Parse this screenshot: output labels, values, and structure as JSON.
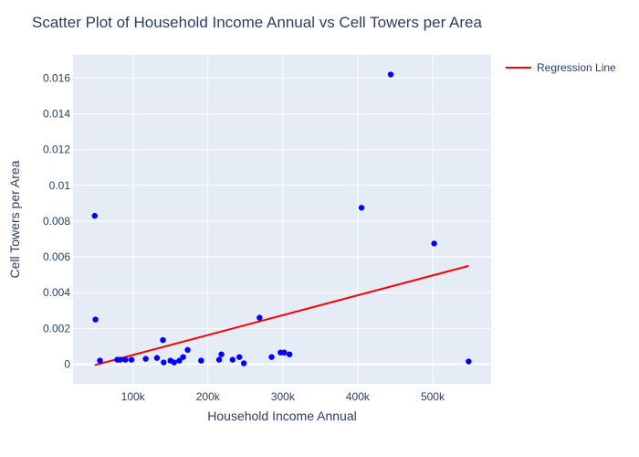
{
  "chart_data": {
    "type": "scatter",
    "title": "Scatter Plot of Household Income Annual vs Cell Towers per Area",
    "xlabel": "Household Income Annual",
    "ylabel": "Cell Towers per Area",
    "xlim": [
      20000,
      578000
    ],
    "ylim": [
      -0.0011,
      0.0173
    ],
    "x_ticks": [
      {
        "value": 100000,
        "label": "100k"
      },
      {
        "value": 200000,
        "label": "200k"
      },
      {
        "value": 300000,
        "label": "300k"
      },
      {
        "value": 400000,
        "label": "400k"
      },
      {
        "value": 500000,
        "label": "500k"
      }
    ],
    "y_ticks": [
      {
        "value": 0,
        "label": "0"
      },
      {
        "value": 0.002,
        "label": "0.002"
      },
      {
        "value": 0.004,
        "label": "0.004"
      },
      {
        "value": 0.006,
        "label": "0.006"
      },
      {
        "value": 0.008,
        "label": "0.008"
      },
      {
        "value": 0.01,
        "label": "0.01"
      },
      {
        "value": 0.012,
        "label": "0.012"
      },
      {
        "value": 0.014,
        "label": "0.014"
      },
      {
        "value": 0.016,
        "label": "0.016"
      }
    ],
    "grid": true,
    "legend_position": "top-right",
    "series": [
      {
        "kind": "scatter",
        "color": "#0000ff",
        "points": [
          {
            "x": 49000,
            "y": 0.0083
          },
          {
            "x": 50000,
            "y": 0.0025
          },
          {
            "x": 56000,
            "y": 0.0002
          },
          {
            "x": 79000,
            "y": 0.00025
          },
          {
            "x": 83000,
            "y": 0.00025
          },
          {
            "x": 90000,
            "y": 0.00025
          },
          {
            "x": 98000,
            "y": 0.00025
          },
          {
            "x": 117000,
            "y": 0.0003
          },
          {
            "x": 132000,
            "y": 0.00035
          },
          {
            "x": 140000,
            "y": 0.00135
          },
          {
            "x": 141000,
            "y": 0.0001
          },
          {
            "x": 150000,
            "y": 0.0002
          },
          {
            "x": 155000,
            "y": 0.0001
          },
          {
            "x": 162000,
            "y": 0.0002
          },
          {
            "x": 167000,
            "y": 0.0004
          },
          {
            "x": 173000,
            "y": 0.0008
          },
          {
            "x": 191000,
            "y": 0.0002
          },
          {
            "x": 215000,
            "y": 0.00025
          },
          {
            "x": 218000,
            "y": 0.00055
          },
          {
            "x": 233000,
            "y": 0.00025
          },
          {
            "x": 242000,
            "y": 0.0004
          },
          {
            "x": 248000,
            "y": 5e-05
          },
          {
            "x": 269000,
            "y": 0.0026
          },
          {
            "x": 285000,
            "y": 0.0004
          },
          {
            "x": 297000,
            "y": 0.00065
          },
          {
            "x": 302000,
            "y": 0.00065
          },
          {
            "x": 309000,
            "y": 0.00055
          },
          {
            "x": 405000,
            "y": 0.00875
          },
          {
            "x": 444000,
            "y": 0.0162
          },
          {
            "x": 502000,
            "y": 0.00675
          },
          {
            "x": 548000,
            "y": 0.00015
          }
        ]
      },
      {
        "kind": "line",
        "name": "Regression Line",
        "color": "#ff0000",
        "points": [
          {
            "x": 49000,
            "y": -5e-05
          },
          {
            "x": 548000,
            "y": 0.0055
          }
        ]
      }
    ]
  }
}
